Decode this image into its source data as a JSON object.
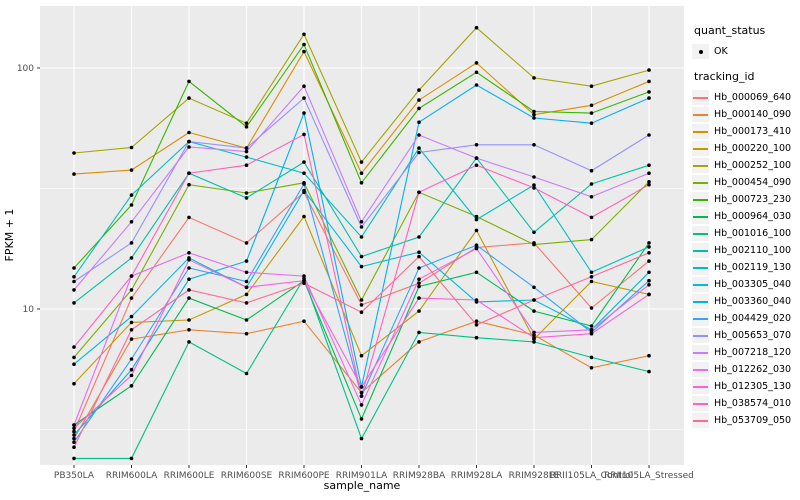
{
  "figure": {
    "x_axis_title": "sample_name",
    "y_axis_title": "FPKM + 1"
  },
  "legend": {
    "quant_title": "quant_status",
    "quant_items": [
      {
        "label": "OK",
        "symbol": "point"
      }
    ],
    "tracking_title": "tracking_id"
  },
  "colors": {
    "panel_background": "#ebebeb",
    "grid_major": "#ffffff",
    "grid_minor": "#f7f7f7",
    "point": "#000000",
    "tick_text": "#4d4d4d",
    "tick_mark": "#333333"
  },
  "chart_data": {
    "type": "line",
    "title": "",
    "xlabel": "sample_name",
    "ylabel": "FPKM + 1",
    "y_scale": "log10",
    "y_tick_labels": [
      "100",
      "10"
    ],
    "y_tick_values": [
      100,
      10
    ],
    "y_minor_values": [
      31.6,
      3.16
    ],
    "ylim": [
      2.2,
      175
    ],
    "grid": true,
    "legend_position": "right",
    "point_shape": "filled-dot",
    "categories": [
      "PB350LA",
      "RRIM600LA",
      "RRIM600LE",
      "RRIM600SE",
      "RRIM600PE",
      "RRIM901LA",
      "RRIM928BA",
      "RRIM928LA",
      "RRIM928LE",
      "RRII105LA_Control",
      "RRII105LA_Stressed"
    ],
    "series": [
      {
        "name": "Hb_000069_640",
        "color": "#F8766D",
        "values": [
          3.1,
          11.1,
          24,
          18.8,
          30.5,
          10.4,
          12.8,
          18,
          18.8,
          10.1,
          15.8
        ]
      },
      {
        "name": "Hb_000140_090",
        "color": "#EA8331",
        "values": [
          2.9,
          7.5,
          8.2,
          7.9,
          8.9,
          4.5,
          7.3,
          8.9,
          7.8,
          5.7,
          6.4
        ]
      },
      {
        "name": "Hb_000173_410",
        "color": "#D89000",
        "values": [
          36.3,
          37.7,
          54,
          46.5,
          117,
          36.6,
          73.6,
          105,
          64,
          70,
          88
        ]
      },
      {
        "name": "Hb_000220_100",
        "color": "#C09B00",
        "values": [
          4.9,
          8.8,
          9.0,
          11.5,
          24.2,
          6.4,
          9.8,
          21.2,
          7.5,
          13.0,
          11.5
        ]
      },
      {
        "name": "Hb_000252_100",
        "color": "#A3A500",
        "values": [
          44.4,
          46.8,
          75,
          59,
          138,
          40.7,
          81,
          147,
          91,
          84,
          98
        ]
      },
      {
        "name": "Hb_000454_090",
        "color": "#7CAE00",
        "values": [
          6.3,
          12.0,
          32.8,
          30.3,
          33.4,
          10.9,
          30.5,
          24.2,
          18.5,
          19.4,
          33.7
        ]
      },
      {
        "name": "Hb_000723_230",
        "color": "#39B600",
        "values": [
          14.8,
          27.0,
          88,
          57,
          125,
          33.4,
          68,
          96,
          66,
          65,
          79.6
        ]
      },
      {
        "name": "Hb_000964_030",
        "color": "#00BB4E",
        "values": [
          3.3,
          4.8,
          11.1,
          9.0,
          13.1,
          3.5,
          12.4,
          14.2,
          9.8,
          8.5,
          18.8
        ]
      },
      {
        "name": "Hb_001016_100",
        "color": "#00C087",
        "values": [
          2.4,
          2.4,
          7.3,
          5.4,
          13.4,
          2.9,
          8.0,
          7.6,
          7.3,
          6.3,
          5.5
        ]
      },
      {
        "name": "Hb_002110_100",
        "color": "#00C1A3",
        "values": [
          10.6,
          16.3,
          36.6,
          28.9,
          40.7,
          16.5,
          19.9,
          42.3,
          20.8,
          33,
          39.5
        ]
      },
      {
        "name": "Hb_002119_130",
        "color": "#00BFC4",
        "values": [
          13.6,
          29.7,
          49.5,
          42.7,
          36.6,
          19.9,
          46.5,
          23.5,
          32.7,
          14.2,
          18.1
        ]
      },
      {
        "name": "Hb_003305_040",
        "color": "#00BAE0",
        "values": [
          5.9,
          9.3,
          16.3,
          12.3,
          31,
          15.0,
          17.2,
          10.7,
          10.9,
          8.2,
          14.2
        ]
      },
      {
        "name": "Hb_003360_040",
        "color": "#00B0F6",
        "values": [
          3.0,
          5.6,
          13.3,
          15.8,
          65,
          4.75,
          59.6,
          85,
          62,
          59,
          75
        ]
      },
      {
        "name": "Hb_004429_020",
        "color": "#35A2FF",
        "values": [
          2.8,
          6.2,
          14.8,
          13.0,
          33,
          4.35,
          14.8,
          18.4,
          12.3,
          8.0,
          13.1
        ]
      },
      {
        "name": "Hb_005653_070",
        "color": "#9590FF",
        "values": [
          13.0,
          18.8,
          49.5,
          46.5,
          75,
          21.9,
          44.6,
          48,
          48,
          37.5,
          52.7
        ]
      },
      {
        "name": "Hb_007218_120",
        "color": "#C77CFF",
        "values": [
          12.0,
          23.0,
          47,
          45,
          84,
          23.0,
          52.7,
          42.3,
          35.3,
          29.2,
          36.6
        ]
      },
      {
        "name": "Hb_012262_030",
        "color": "#E76BF3",
        "values": [
          3.3,
          13.7,
          17.1,
          14.2,
          13.7,
          4.0,
          13.3,
          17.8,
          8.0,
          8.2,
          12.6
        ]
      },
      {
        "name": "Hb_012305_130",
        "color": "#FA62DB",
        "values": [
          3.2,
          5.3,
          16.0,
          12.3,
          13.1,
          4.75,
          11.1,
          10.9,
          7.6,
          7.9,
          11.5
        ]
      },
      {
        "name": "Hb_038574_010",
        "color": "#FF62BC",
        "values": [
          6.95,
          13.7,
          36.6,
          39.5,
          53,
          4.35,
          30.5,
          39.5,
          31.8,
          24,
          32.8
        ]
      },
      {
        "name": "Hb_053709_050",
        "color": "#FF6A98",
        "values": [
          2.67,
          8.2,
          12.0,
          10.6,
          12.8,
          9.7,
          16.5,
          8.6,
          10.9,
          13.6,
          17.1
        ]
      }
    ]
  }
}
